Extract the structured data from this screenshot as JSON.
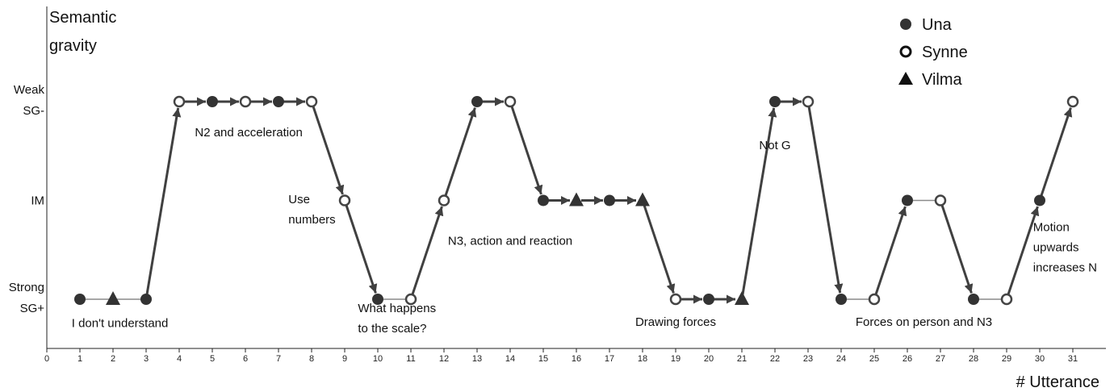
{
  "chart_data": {
    "type": "line",
    "ylabel": "Semantic gravity",
    "ylabel_lines": [
      "Semantic",
      "gravity"
    ],
    "xlabel": "# Utterance",
    "xlim": [
      0,
      31
    ],
    "x_ticks": [
      0,
      1,
      2,
      3,
      4,
      5,
      6,
      7,
      8,
      9,
      10,
      11,
      12,
      13,
      14,
      15,
      16,
      17,
      18,
      19,
      20,
      21,
      22,
      23,
      24,
      25,
      26,
      27,
      28,
      29,
      30,
      31
    ],
    "levels": [
      {
        "value": 3,
        "lines": [
          "Weak",
          "SG-"
        ]
      },
      {
        "value": 2,
        "lines": [
          "IM"
        ]
      },
      {
        "value": 1,
        "lines": [
          "Strong",
          "SG+"
        ]
      }
    ],
    "legend": [
      {
        "name": "Una",
        "marker": "filled-circle"
      },
      {
        "name": "Synne",
        "marker": "open-circle"
      },
      {
        "name": "Vilma",
        "marker": "triangle"
      }
    ],
    "points": [
      {
        "x": 1,
        "y": 1,
        "speaker": "Una"
      },
      {
        "x": 2,
        "y": 1,
        "speaker": "Vilma"
      },
      {
        "x": 3,
        "y": 1,
        "speaker": "Una"
      },
      {
        "x": 4,
        "y": 3,
        "speaker": "Synne"
      },
      {
        "x": 5,
        "y": 3,
        "speaker": "Una"
      },
      {
        "x": 6,
        "y": 3,
        "speaker": "Synne"
      },
      {
        "x": 7,
        "y": 3,
        "speaker": "Una"
      },
      {
        "x": 8,
        "y": 3,
        "speaker": "Synne"
      },
      {
        "x": 9,
        "y": 2,
        "speaker": "Synne"
      },
      {
        "x": 10,
        "y": 1,
        "speaker": "Una"
      },
      {
        "x": 11,
        "y": 1,
        "speaker": "Synne"
      },
      {
        "x": 12,
        "y": 2,
        "speaker": "Synne"
      },
      {
        "x": 13,
        "y": 3,
        "speaker": "Una"
      },
      {
        "x": 14,
        "y": 3,
        "speaker": "Synne"
      },
      {
        "x": 15,
        "y": 2,
        "speaker": "Una"
      },
      {
        "x": 16,
        "y": 2,
        "speaker": "Vilma"
      },
      {
        "x": 17,
        "y": 2,
        "speaker": "Una"
      },
      {
        "x": 18,
        "y": 2,
        "speaker": "Vilma"
      },
      {
        "x": 19,
        "y": 1,
        "speaker": "Synne"
      },
      {
        "x": 20,
        "y": 1,
        "speaker": "Una"
      },
      {
        "x": 21,
        "y": 1,
        "speaker": "Vilma"
      },
      {
        "x": 22,
        "y": 3,
        "speaker": "Una"
      },
      {
        "x": 23,
        "y": 3,
        "speaker": "Synne"
      },
      {
        "x": 24,
        "y": 1,
        "speaker": "Una"
      },
      {
        "x": 25,
        "y": 1,
        "speaker": "Synne"
      },
      {
        "x": 26,
        "y": 2,
        "speaker": "Una"
      },
      {
        "x": 27,
        "y": 2,
        "speaker": "Synne"
      },
      {
        "x": 28,
        "y": 1,
        "speaker": "Una"
      },
      {
        "x": 29,
        "y": 1,
        "speaker": "Synne"
      },
      {
        "x": 30,
        "y": 2,
        "speaker": "Una"
      },
      {
        "x": 31,
        "y": 3,
        "speaker": "Synne"
      }
    ],
    "segments_without_arrow": [
      [
        1,
        2
      ],
      [
        2,
        3
      ],
      [
        10,
        11
      ],
      [
        24,
        25
      ],
      [
        26,
        27
      ],
      [
        28,
        29
      ]
    ],
    "annotations": [
      {
        "lines": [
          "N2 and acceleration"
        ],
        "x": 6.1,
        "y": 2.65,
        "anchor": "middle"
      },
      {
        "lines": [
          "Use",
          "numbers"
        ],
        "x": 7.3,
        "y": 1.97,
        "anchor": "start"
      },
      {
        "lines": [
          "I don't understand"
        ],
        "x": 0.75,
        "y": 0.72,
        "anchor": "start"
      },
      {
        "lines": [
          "What happens",
          "to the scale?"
        ],
        "x": 9.4,
        "y": 0.87,
        "anchor": "start"
      },
      {
        "lines": [
          "N3, action and reaction"
        ],
        "x": 14.0,
        "y": 1.55,
        "anchor": "middle"
      },
      {
        "lines": [
          "Drawing forces"
        ],
        "x": 19.0,
        "y": 0.73,
        "anchor": "middle"
      },
      {
        "lines": [
          "Not G"
        ],
        "x": 22.0,
        "y": 2.52,
        "anchor": "middle"
      },
      {
        "lines": [
          "Forces on person and N3"
        ],
        "x": 26.5,
        "y": 0.73,
        "anchor": "middle"
      },
      {
        "lines": [
          "Motion",
          "upwards",
          "increases N"
        ],
        "x": 29.8,
        "y": 1.69,
        "anchor": "start"
      }
    ],
    "grid": false,
    "legend_position": "top-right"
  }
}
